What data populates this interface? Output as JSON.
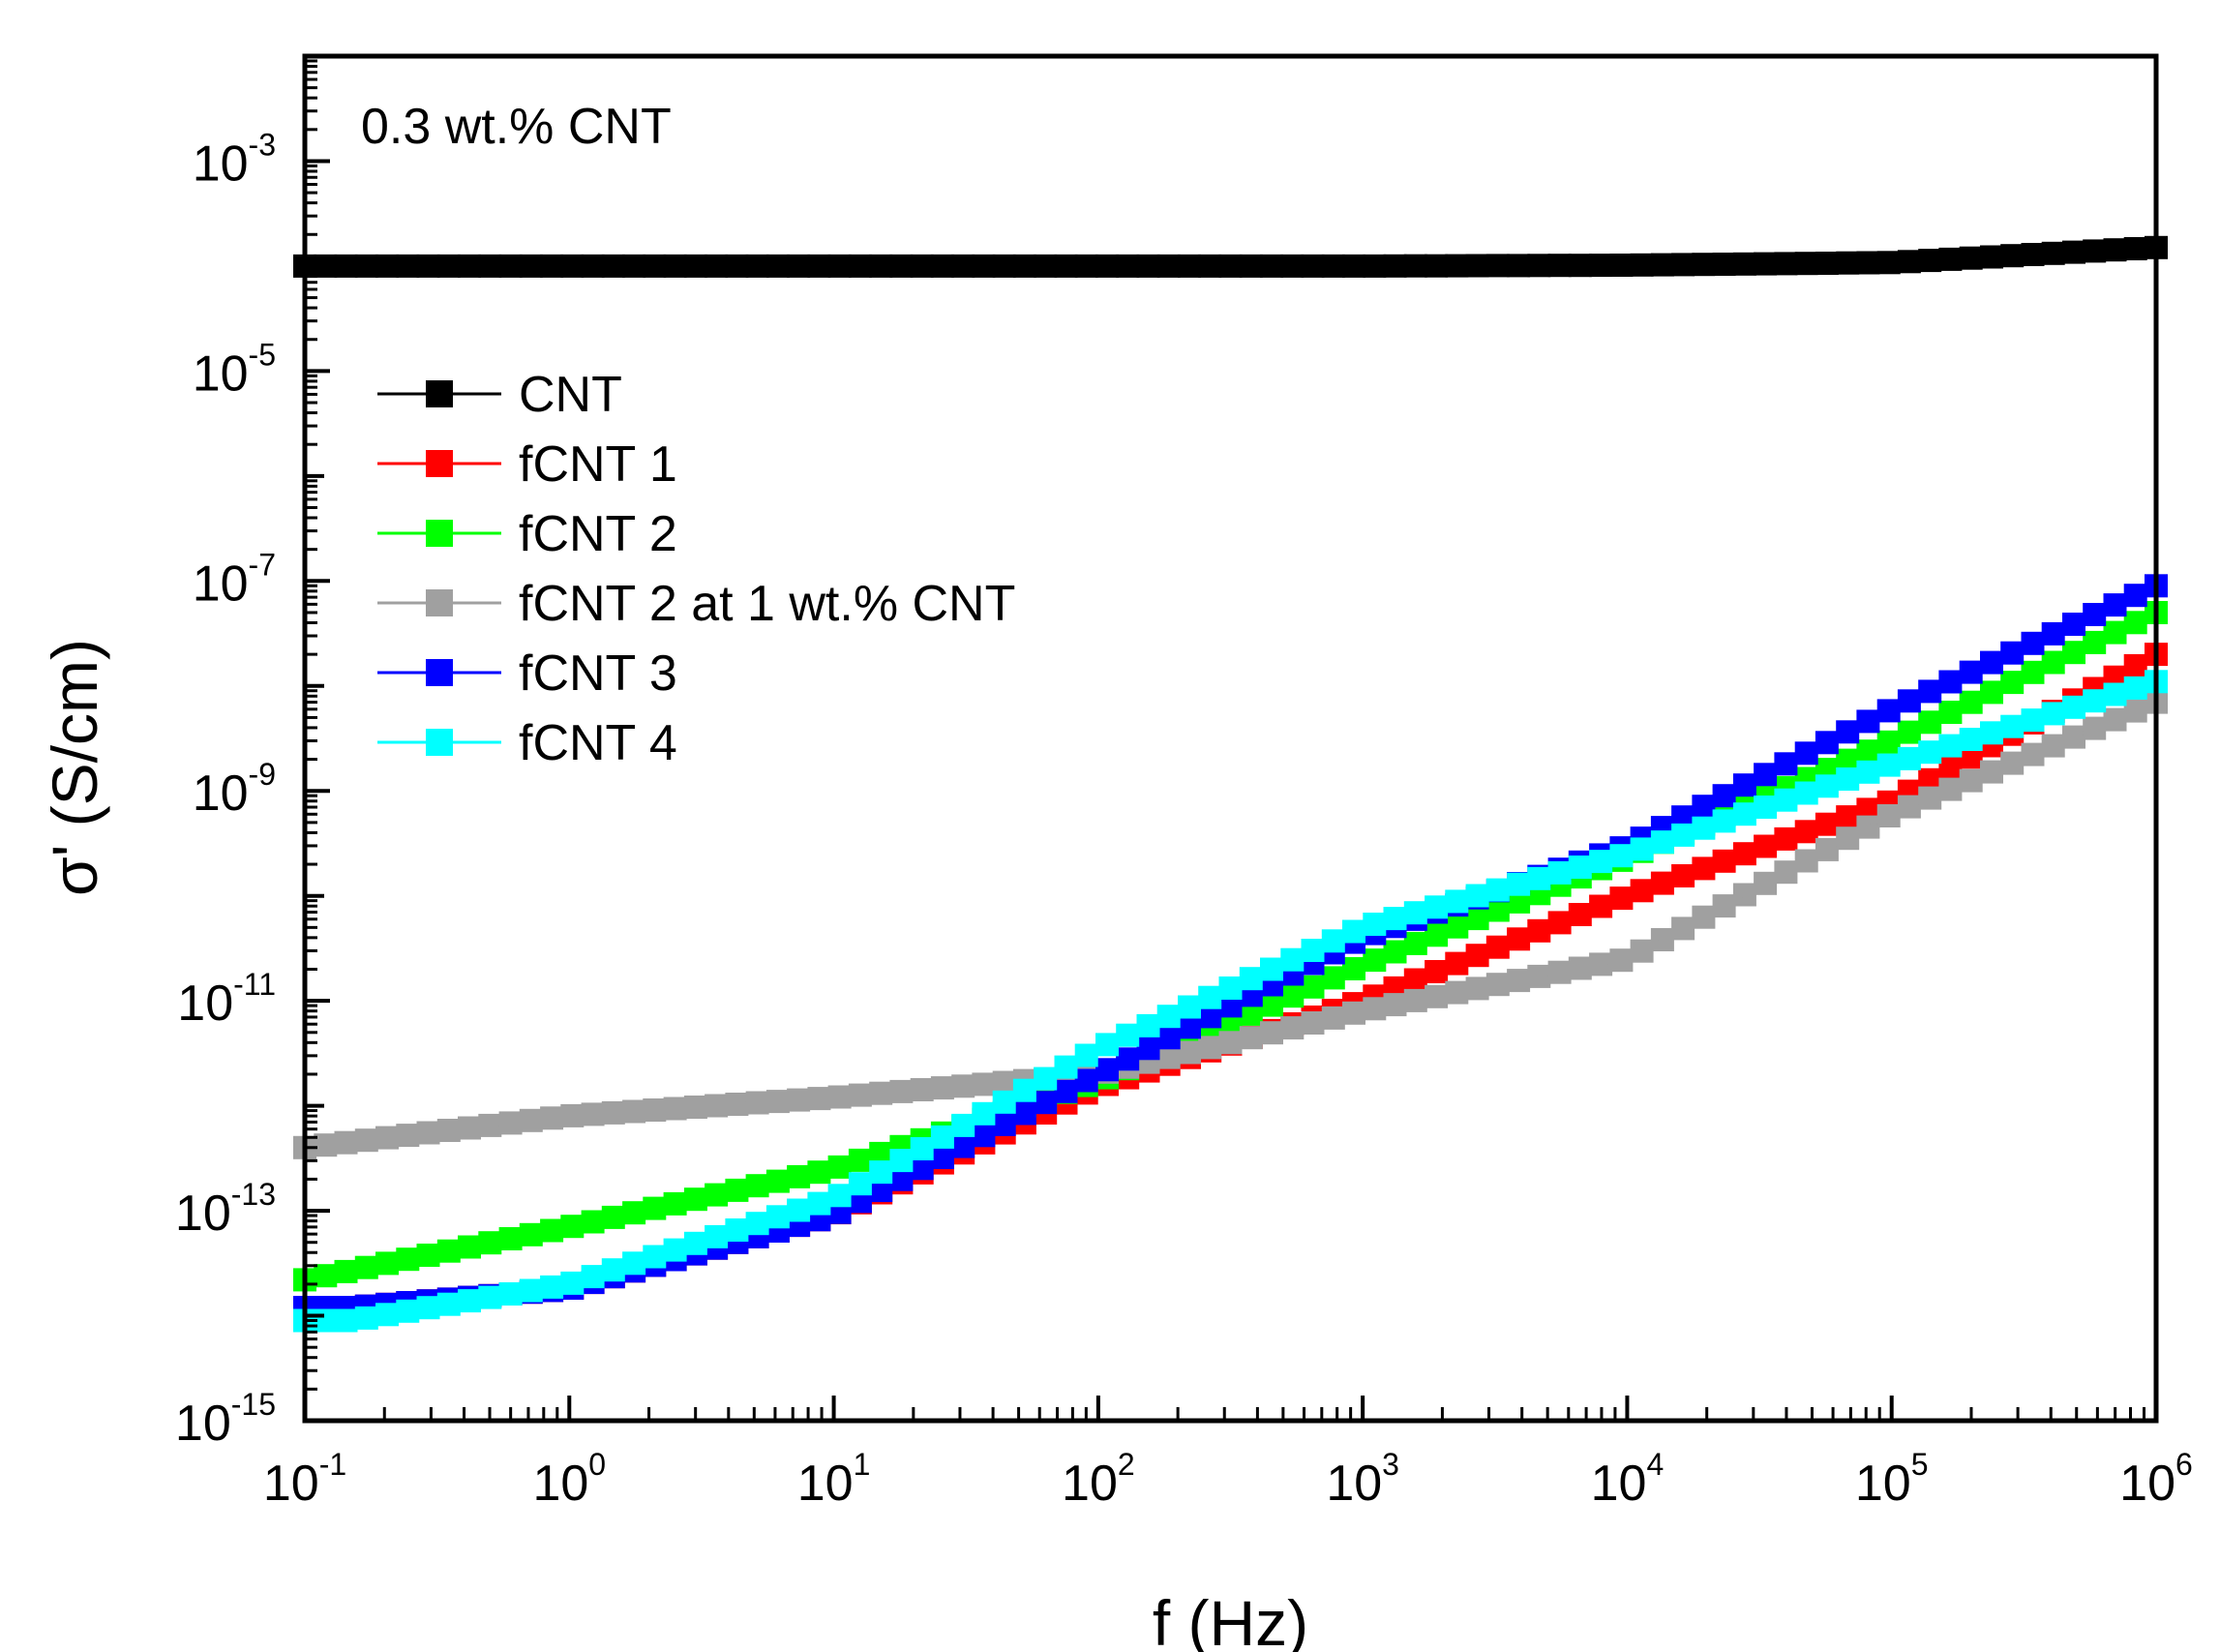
{
  "chart_data": {
    "type": "scatter",
    "annotation": "0.3 wt.% CNT",
    "xlabel": "f (Hz)",
    "ylabel": "σ' (S/cm)",
    "x_scale": "log",
    "y_scale": "log",
    "xlim": [
      0.1,
      1000000
    ],
    "ylim": [
      1e-15,
      0.01
    ],
    "x_ticks": [
      {
        "value": 0.1,
        "base": "10",
        "exp": "-1"
      },
      {
        "value": 1,
        "base": "10",
        "exp": "0"
      },
      {
        "value": 10,
        "base": "10",
        "exp": "1"
      },
      {
        "value": 100,
        "base": "10",
        "exp": "2"
      },
      {
        "value": 1000,
        "base": "10",
        "exp": "3"
      },
      {
        "value": 10000,
        "base": "10",
        "exp": "4"
      },
      {
        "value": 100000,
        "base": "10",
        "exp": "5"
      },
      {
        "value": 1000000,
        "base": "10",
        "exp": "6"
      }
    ],
    "y_ticks": [
      {
        "value": 1e-15,
        "base": "10",
        "exp": "-15"
      },
      {
        "value": 1e-13,
        "base": "10",
        "exp": "-13"
      },
      {
        "value": 1e-11,
        "base": "10",
        "exp": "-11"
      },
      {
        "value": 1e-09,
        "base": "10",
        "exp": "-9"
      },
      {
        "value": 1e-07,
        "base": "10",
        "exp": "-7"
      },
      {
        "value": 1e-05,
        "base": "10",
        "exp": "-5"
      },
      {
        "value": 0.001,
        "base": "10",
        "exp": "-3"
      }
    ],
    "grid": false,
    "legend_position": "top-left",
    "series": [
      {
        "name": "CNT",
        "color": "#000000",
        "points": [
          [
            0.1,
            0.0001
          ],
          [
            1,
            0.0001
          ],
          [
            10,
            0.0001
          ],
          [
            100,
            0.0001
          ],
          [
            1000,
            0.0001
          ],
          [
            10000,
            0.000102
          ],
          [
            100000,
            0.000108
          ],
          [
            1000000,
            0.00015
          ]
        ]
      },
      {
        "name": "fCNT 1",
        "color": "#ff0000",
        "points": [
          [
            0.1,
            1.2e-14
          ],
          [
            0.15,
            1.2e-14
          ],
          [
            1,
            1.8e-14
          ],
          [
            10,
            9e-14
          ],
          [
            100,
            1.5e-12
          ],
          [
            1000,
            1e-11
          ],
          [
            10000,
            1e-10
          ],
          [
            100000,
            8e-10
          ],
          [
            1000000,
            2e-08
          ]
        ]
      },
      {
        "name": "fCNT 2",
        "color": "#00ff00",
        "points": [
          [
            0.1,
            2.2e-14
          ],
          [
            1,
            7e-14
          ],
          [
            10,
            2.5e-13
          ],
          [
            100,
            1.7e-12
          ],
          [
            1000,
            2.2e-11
          ],
          [
            10000,
            2.3e-10
          ],
          [
            100000,
            3e-09
          ],
          [
            1000000,
            5e-08
          ]
        ]
      },
      {
        "name": "fCNT 2 at 1 wt.% CNT",
        "color": "#a0a0a0",
        "points": [
          [
            0.1,
            4e-13
          ],
          [
            1,
            8e-13
          ],
          [
            10,
            1.2e-12
          ],
          [
            100,
            2e-12
          ],
          [
            1000,
            8e-12
          ],
          [
            10000,
            2.5e-11
          ],
          [
            100000,
            6e-10
          ],
          [
            1000000,
            7e-09
          ]
        ]
      },
      {
        "name": "fCNT 3",
        "color": "#0000ff",
        "points": [
          [
            0.1,
            1.2e-14
          ],
          [
            0.15,
            1.2e-14
          ],
          [
            1,
            1.8e-14
          ],
          [
            10,
            9e-14
          ],
          [
            100,
            2e-12
          ],
          [
            1000,
            4e-11
          ],
          [
            10000,
            3e-10
          ],
          [
            100000,
            6e-09
          ],
          [
            1000000,
            9e-08
          ]
        ]
      },
      {
        "name": "fCNT 4",
        "color": "#00ffff",
        "points": [
          [
            0.1,
            9e-15
          ],
          [
            0.15,
            9e-15
          ],
          [
            1,
            2e-14
          ],
          [
            10,
            1.3e-13
          ],
          [
            100,
            3.5e-12
          ],
          [
            1000,
            5e-11
          ],
          [
            10000,
            2.5e-10
          ],
          [
            100000,
            1.8e-09
          ],
          [
            1000000,
            1.1e-08
          ]
        ]
      }
    ]
  }
}
